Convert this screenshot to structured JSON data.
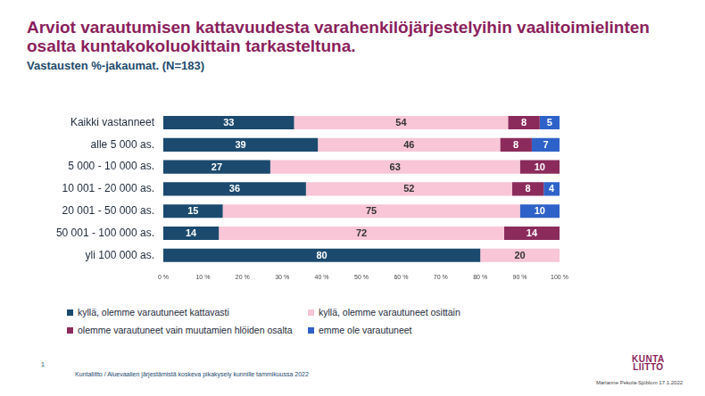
{
  "chart_data": {
    "type": "bar",
    "orientation": "horizontal",
    "stacked": true,
    "data_labels": true,
    "grid": false,
    "legend": "bottom",
    "title": "Arviot varautumisen kattavuudesta varahenkilöjärjestelyihin vaalitoimielinten osalta kuntakokoluokittain tarkasteltuna.",
    "subtitle": "Vastausten %-jakaumat. (N=183)",
    "categories": [
      "Kaikki vastanneet",
      "alle 5 000 as.",
      "5 000 - 10 000 as.",
      "10 001 - 20 000 as.",
      "20 001 - 50 000 as.",
      "50 001 - 100 000 as.",
      "yli 100 000 as."
    ],
    "series": [
      {
        "name": "kyllä, olemme varautuneet kattavasti",
        "color": "#1b4a6e",
        "values": [
          33,
          39,
          27,
          36,
          15,
          14,
          80
        ]
      },
      {
        "name": "kyllä, olemme varautuneet osittain",
        "color": "#f8c6d6",
        "values": [
          54,
          46,
          63,
          52,
          75,
          72,
          20
        ]
      },
      {
        "name": "olemme varautuneet vain muutamien hlöiden osalta",
        "color": "#8b2b5c",
        "values": [
          8,
          8,
          10,
          8,
          null,
          14,
          null
        ]
      },
      {
        "name": "emme ole varautuneet",
        "color": "#2f62c8",
        "values": [
          5,
          7,
          null,
          4,
          10,
          null,
          null
        ]
      }
    ],
    "xlim": [
      0,
      100
    ],
    "xticks": [
      {
        "value": 0,
        "label": "0 %"
      },
      {
        "value": 10,
        "label": "10 %"
      },
      {
        "value": 20,
        "label": "20 %"
      },
      {
        "value": 30,
        "label": "30 %"
      },
      {
        "value": 40,
        "label": "40 %"
      },
      {
        "value": 50,
        "label": "50 %"
      },
      {
        "value": 60,
        "label": "60 %"
      },
      {
        "value": 70,
        "label": "70 %"
      },
      {
        "value": 80,
        "label": "80 %"
      },
      {
        "value": 90,
        "label": "90 %"
      },
      {
        "value": 100,
        "label": "100 %"
      }
    ]
  },
  "page_number": "1",
  "source": "Kuntaliitto / Aluevaalien järjestämistä koskeva pikakysely kunnille tammikuussa 2022",
  "author": "Marianne Pekola-Sjöblom 17.1.2022",
  "logo": [
    "KUNTA",
    "LIITTO"
  ]
}
